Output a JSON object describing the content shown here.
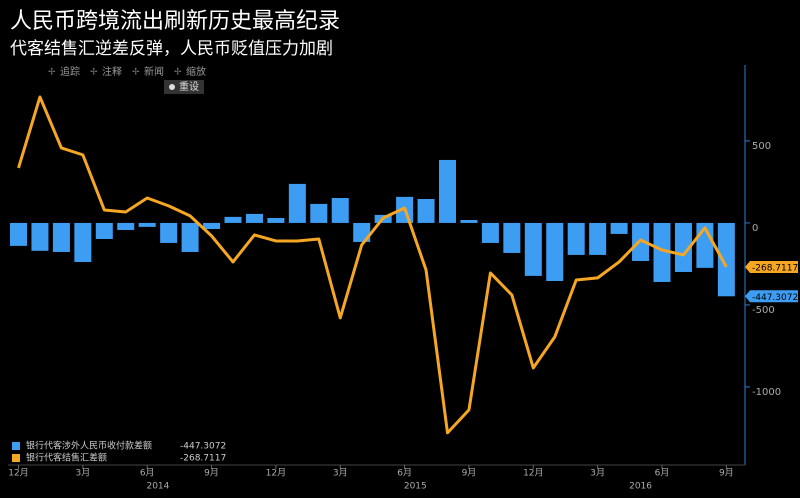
{
  "chart_data": {
    "type": "bar_line",
    "title": "人民币跨境流出刷新历史最高纪录",
    "subtitle": "代客结售汇逆差反弹，人民币贬值压力加剧",
    "toolbar": [
      "追踪",
      "注释",
      "新闻",
      "缩放"
    ],
    "reset_button": "重设",
    "categories": [
      "12月",
      null,
      null,
      "3月",
      null,
      null,
      "6月",
      null,
      null,
      "9月",
      null,
      null,
      "12月",
      null,
      null,
      "3月",
      null,
      null,
      "6月",
      null,
      null,
      "9月",
      null,
      null,
      "12月",
      null,
      null,
      "3月",
      null,
      null,
      "6月",
      null,
      null,
      "9月"
    ],
    "years": [
      "2014",
      "2015",
      "2016"
    ],
    "series": [
      {
        "name": "银行代客涉外人民币收付款差额",
        "color": "#3d9df2",
        "kind": "bar",
        "legend_value": "-447.3072",
        "values": [
          -140,
          -170,
          -177,
          -238,
          -98,
          -43,
          -24,
          -122,
          -177,
          -37,
          37,
          55,
          30,
          238,
          116,
          152,
          -116,
          49,
          159,
          146,
          384,
          18,
          -122,
          -183,
          -323,
          -354,
          -195,
          -195,
          -67,
          -232,
          -360,
          -299,
          -274,
          -447.3072
        ]
      },
      {
        "name": "银行代客结售汇差额",
        "color": "#f5a623",
        "kind": "line",
        "legend_value": "-268.7117",
        "values": [
          335,
          768,
          457,
          415,
          79,
          67,
          152,
          104,
          43,
          -79,
          -238,
          -73,
          -110,
          -110,
          -98,
          -579,
          -134,
          30,
          91,
          -287,
          -1280,
          -1140,
          -305,
          -439,
          -884,
          -695,
          -348,
          -335,
          -238,
          -104,
          -165,
          -195,
          -30,
          -268.7117
        ]
      }
    ],
    "ylim": [
      -1476,
      963
    ],
    "yticks": [
      500,
      0,
      -500,
      -1000
    ],
    "grid": false
  }
}
